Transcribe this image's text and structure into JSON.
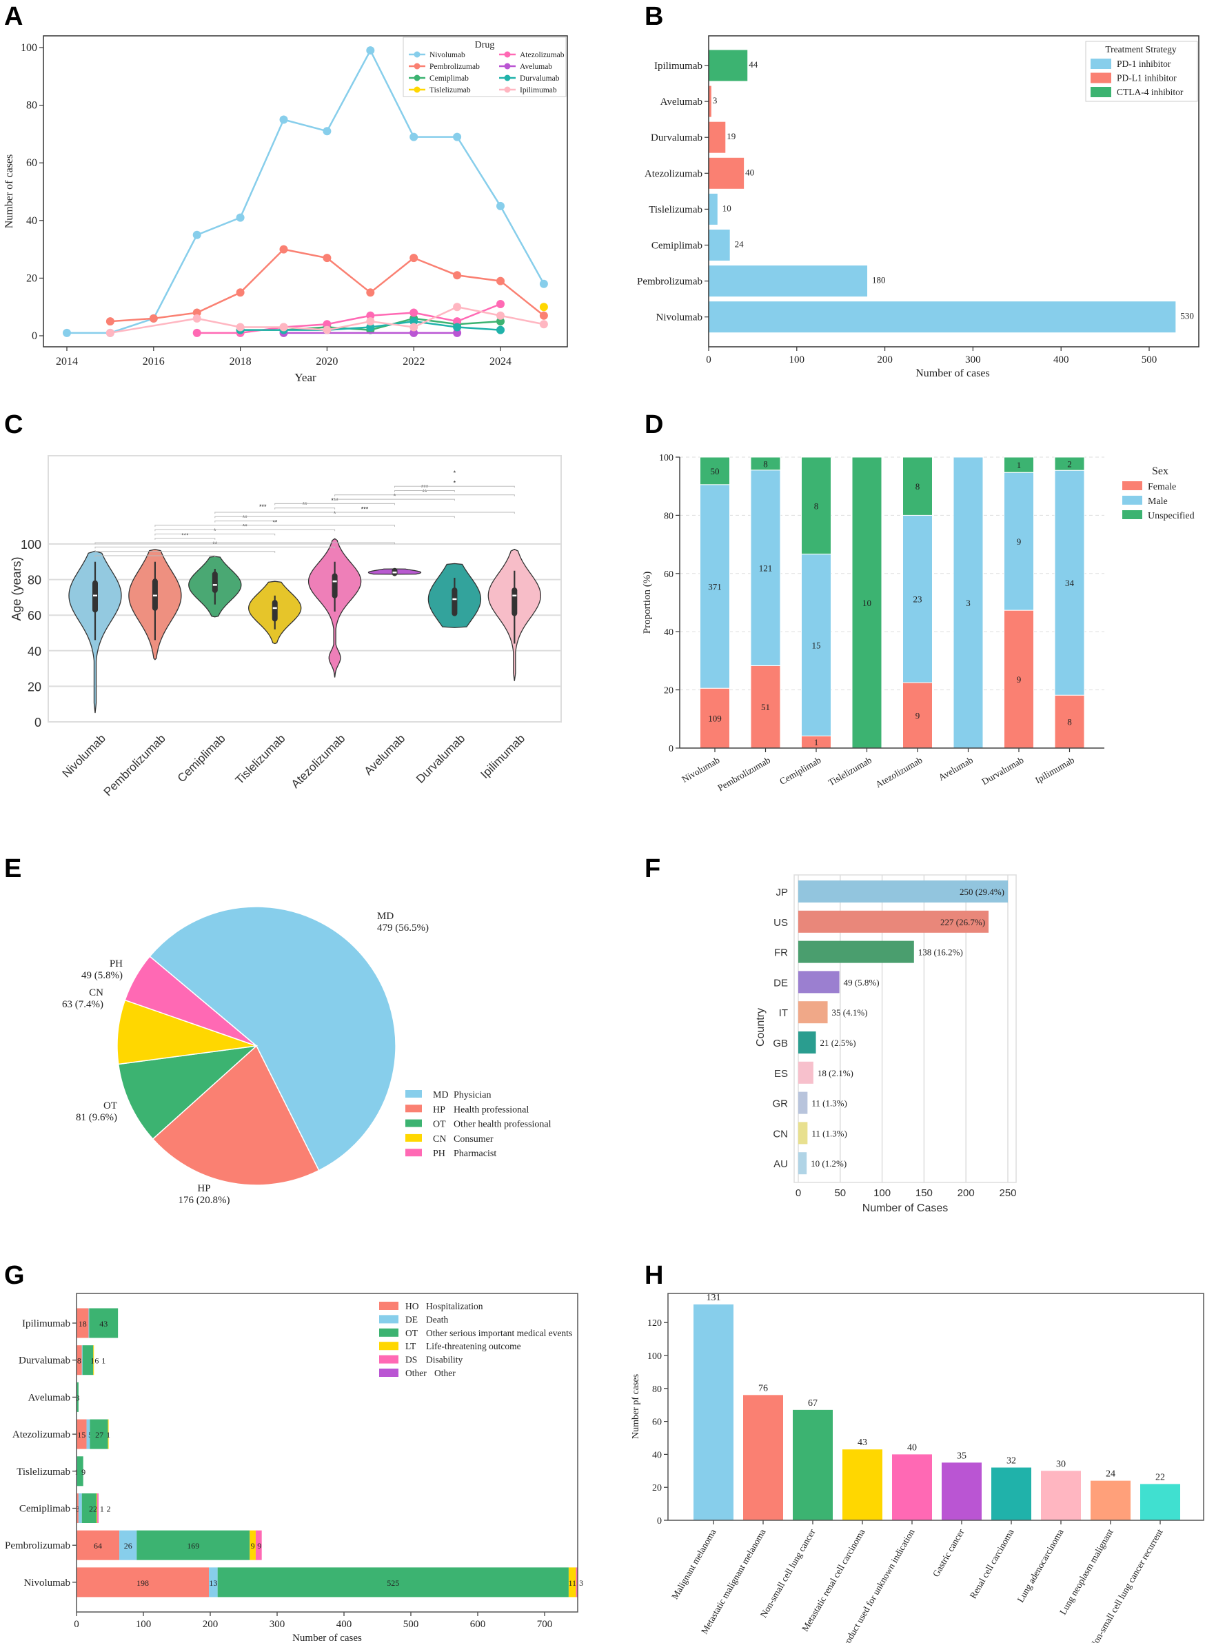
{
  "chart_data": [
    {
      "panel_label": "A",
      "type": "line",
      "xlabel": "Year",
      "ylabel": "Number of cases",
      "xlim": [
        2013.5,
        2025.6
      ],
      "ylim": [
        -4,
        104
      ],
      "x_ticks": [
        2014,
        2016,
        2018,
        2020,
        2022,
        2024
      ],
      "y_ticks": [
        0,
        20,
        40,
        60,
        80,
        100
      ],
      "legend_title": "Drug",
      "legend_position": "top-right",
      "series": [
        {
          "name": "Nivolumab",
          "color": "#87CEEB",
          "points": [
            [
              2014,
              1
            ],
            [
              2015,
              1
            ],
            [
              2016,
              6
            ],
            [
              2017,
              35
            ],
            [
              2018,
              41
            ],
            [
              2019,
              75
            ],
            [
              2020,
              71
            ],
            [
              2021,
              99
            ],
            [
              2022,
              69
            ],
            [
              2023,
              69
            ],
            [
              2024,
              45
            ],
            [
              2025,
              18
            ]
          ]
        },
        {
          "name": "Pembrolizumab",
          "color": "#FA8072",
          "points": [
            [
              2015,
              5
            ],
            [
              2016,
              6
            ],
            [
              2017,
              8
            ],
            [
              2018,
              15
            ],
            [
              2019,
              30
            ],
            [
              2020,
              27
            ],
            [
              2021,
              15
            ],
            [
              2022,
              27
            ],
            [
              2023,
              21
            ],
            [
              2024,
              19
            ],
            [
              2025,
              7
            ]
          ]
        },
        {
          "name": "Cemiplimab",
          "color": "#3CB371",
          "points": [
            [
              2018,
              2
            ],
            [
              2019,
              2
            ],
            [
              2020,
              3
            ],
            [
              2021,
              2
            ],
            [
              2022,
              6
            ],
            [
              2023,
              4
            ],
            [
              2024,
              5
            ]
          ]
        },
        {
          "name": "Tislelizumab",
          "color": "#FFD700",
          "points": [
            [
              2025,
              10
            ]
          ]
        },
        {
          "name": "Atezolizumab",
          "color": "#FF69B4",
          "points": [
            [
              2017,
              1
            ],
            [
              2018,
              1
            ],
            [
              2019,
              3
            ],
            [
              2020,
              4
            ],
            [
              2021,
              7
            ],
            [
              2022,
              8
            ],
            [
              2023,
              5
            ],
            [
              2024,
              11
            ]
          ]
        },
        {
          "name": "Avelumab",
          "color": "#BA55D3",
          "points": [
            [
              2019,
              1
            ],
            [
              2022,
              1
            ],
            [
              2023,
              1
            ]
          ]
        },
        {
          "name": "Durvalumab",
          "color": "#20B2AA",
          "points": [
            [
              2018,
              2
            ],
            [
              2019,
              2
            ],
            [
              2020,
              2
            ],
            [
              2021,
              3
            ],
            [
              2022,
              5
            ],
            [
              2023,
              3
            ],
            [
              2024,
              2
            ]
          ]
        },
        {
          "name": "Ipilimumab",
          "color": "#FFB6C1",
          "points": [
            [
              2015,
              1
            ],
            [
              2017,
              6
            ],
            [
              2018,
              3
            ],
            [
              2019,
              3
            ],
            [
              2020,
              2
            ],
            [
              2021,
              5
            ],
            [
              2022,
              3
            ],
            [
              2023,
              10
            ],
            [
              2024,
              7
            ],
            [
              2025,
              4
            ]
          ]
        }
      ]
    },
    {
      "panel_label": "B",
      "type": "bar",
      "orientation": "horizontal",
      "xlabel": "Number of cases",
      "x_ticks": [
        0,
        100,
        200,
        300,
        400,
        500
      ],
      "legend_title": "Treatment Strategy",
      "legend_position": "top-right",
      "legend": [
        {
          "name": "PD-1 inhibitor",
          "color": "#87CEEB"
        },
        {
          "name": "PD-L1 inhibitor",
          "color": "#FA8072"
        },
        {
          "name": "CTLA-4 inhibitor",
          "color": "#3CB371"
        }
      ],
      "categories": [
        "Ipilimumab",
        "Avelumab",
        "Durvalumab",
        "Atezolizumab",
        "Tislelizumab",
        "Cemiplimab",
        "Pembrolizumab",
        "Nivolumab"
      ],
      "values": [
        44,
        3,
        19,
        40,
        10,
        24,
        180,
        530
      ],
      "strategy": [
        2,
        1,
        1,
        1,
        0,
        0,
        0,
        0
      ],
      "value_labels": [
        "44",
        "3",
        "19",
        "40",
        "10",
        "24",
        "180",
        "530"
      ]
    },
    {
      "panel_label": "C",
      "type": "violin",
      "ylabel": "Age (years)",
      "y_ticks": [
        0,
        20,
        40,
        60,
        80,
        100
      ],
      "grid": true,
      "categories": [
        "Nivolumab",
        "Pembrolizumab",
        "Cemiplimab",
        "Tislelizumab",
        "Atezolizumab",
        "Avelumab",
        "Durvalumab",
        "Ipilimumab"
      ],
      "colors": [
        "#93C9E0",
        "#EE9080",
        "#4AA873",
        "#E6C52A",
        "#EE7FB8",
        "#B85AD0",
        "#33A39C",
        "#F7BDC8"
      ],
      "stats": [
        {
          "min": 5,
          "q1": 63,
          "median": 71,
          "q3": 78,
          "max": 96,
          "whisker_low": 46,
          "whisker_high": 90
        },
        {
          "min": 35,
          "q1": 64,
          "median": 71,
          "q3": 79,
          "max": 97,
          "whisker_low": 46,
          "whisker_high": 90
        },
        {
          "min": 59,
          "q1": 74,
          "median": 77,
          "q3": 83,
          "max": 93,
          "whisker_low": 66,
          "whisker_high": 86
        },
        {
          "min": 44,
          "q1": 58,
          "median": 64,
          "q3": 67,
          "max": 79,
          "whisker_low": 52,
          "whisker_high": 71
        },
        {
          "min": 25,
          "q1": 71,
          "median": 79,
          "q3": 82,
          "max": 103,
          "whisker_low": 62,
          "whisker_high": 90,
          "secondary_mode": 36
        },
        {
          "min": 83,
          "q1": 83.5,
          "median": 84,
          "q3": 85,
          "max": 86,
          "whisker_low": 83,
          "whisker_high": 86
        },
        {
          "min": 53,
          "q1": 61,
          "median": 69,
          "q3": 74,
          "max": 89,
          "whisker_low": 61,
          "whisker_high": 81
        },
        {
          "min": 23,
          "q1": 61,
          "median": 71,
          "q3": 74,
          "max": 97,
          "whisker_low": 44,
          "whisker_high": 85
        }
      ],
      "significance": [
        {
          "from": 0,
          "to": 2,
          "label": ""
        },
        {
          "from": 0,
          "to": 3,
          "label": ""
        },
        {
          "from": 0,
          "to": 4,
          "label": "**"
        },
        {
          "from": 0,
          "to": 5,
          "label": ""
        },
        {
          "from": 1,
          "to": 2,
          "label": "***"
        },
        {
          "from": 1,
          "to": 3,
          "label": "*"
        },
        {
          "from": 1,
          "to": 4,
          "label": "**"
        },
        {
          "from": 1,
          "to": 5,
          "label": "**"
        },
        {
          "from": 2,
          "to": 3,
          "label": "**"
        },
        {
          "from": 2,
          "to": 6,
          "label": "*"
        },
        {
          "from": 2,
          "to": 7,
          "label": "***"
        },
        {
          "from": 3,
          "to": 4,
          "label": "**"
        },
        {
          "from": 3,
          "to": 5,
          "label": "***"
        },
        {
          "from": 4,
          "to": 6,
          "label": "*"
        },
        {
          "from": 4,
          "to": 7,
          "label": "**"
        },
        {
          "from": 5,
          "to": 6,
          "label": "***"
        },
        {
          "from": 5,
          "to": 7,
          "label": "*"
        }
      ],
      "extra_labels": [
        "***",
        "*"
      ]
    },
    {
      "panel_label": "D",
      "type": "bar",
      "stacked": "percent",
      "ylabel": "Proportion (%)",
      "y_ticks": [
        0,
        20,
        40,
        60,
        80,
        100
      ],
      "grid": "dashed",
      "legend_title": "Sex",
      "legend_position": "right",
      "categories": [
        "Nivolumab",
        "Pembrolizumab",
        "Cemiplimab",
        "Tislelizumab",
        "Atezolizumab",
        "Avelumab",
        "Durvalumab",
        "Ipilimumab"
      ],
      "series": [
        {
          "name": "Female",
          "color": "#FA8072",
          "values": [
            109,
            51,
            1,
            0,
            9,
            0,
            9,
            8
          ]
        },
        {
          "name": "Male",
          "color": "#87CEEB",
          "values": [
            371,
            121,
            15,
            0,
            23,
            3,
            9,
            34
          ]
        },
        {
          "name": "Unspecified",
          "color": "#3CB371",
          "values": [
            50,
            8,
            8,
            10,
            8,
            0,
            1,
            2
          ]
        }
      ]
    },
    {
      "panel_label": "E",
      "type": "pie",
      "legend_position": "lower-right",
      "slices": [
        {
          "code": "MD",
          "name": "Physician",
          "value": 479,
          "label": "479 (56.5%)",
          "color": "#87CEEB"
        },
        {
          "code": "HP",
          "name": "Health professional",
          "value": 176,
          "label": "176 (20.8%)",
          "color": "#FA8072"
        },
        {
          "code": "OT",
          "name": "Other health professional",
          "value": 81,
          "label": "81 (9.6%)",
          "color": "#3CB371"
        },
        {
          "code": "CN",
          "name": "Consumer",
          "value": 63,
          "label": "63 (7.4%)",
          "color": "#FFD700"
        },
        {
          "code": "PH",
          "name": "Pharmacist",
          "value": 49,
          "label": "49 (5.8%)",
          "color": "#FF69B4"
        }
      ]
    },
    {
      "panel_label": "F",
      "type": "bar",
      "orientation": "horizontal",
      "xlabel": "Number of Cases",
      "ylabel": "Country",
      "x_ticks": [
        0,
        50,
        100,
        150,
        200,
        250
      ],
      "grid": true,
      "categories": [
        "JP",
        "US",
        "FR",
        "DE",
        "IT",
        "GB",
        "ES",
        "GR",
        "CN",
        "AU"
      ],
      "values": [
        250,
        227,
        138,
        49,
        35,
        21,
        18,
        11,
        11,
        10
      ],
      "value_labels": [
        "250 (29.4%)",
        "227 (26.7%)",
        "138 (16.2%)",
        "49 (5.8%)",
        "35 (4.1%)",
        "21 (2.5%)",
        "18 (2.1%)",
        "11 (1.3%)",
        "11 (1.3%)",
        "10 (1.2%)"
      ],
      "colors": [
        "#92C5DE",
        "#E9877A",
        "#4A9E6E",
        "#9B7FD0",
        "#F0A888",
        "#2A9D8F",
        "#F7C0CC",
        "#B8C4DC",
        "#E8E08F",
        "#B0D4E6"
      ]
    },
    {
      "panel_label": "G",
      "type": "bar",
      "orientation": "horizontal",
      "stacked": true,
      "xlabel": "Number of cases",
      "x_ticks": [
        0,
        100,
        200,
        300,
        400,
        500,
        600,
        700
      ],
      "legend_position": "top-right",
      "categories": [
        "Ipilimumab",
        "Durvalumab",
        "Avelumab",
        "Atezolizumab",
        "Tislelizumab",
        "Cemiplimab",
        "Pembrolizumab",
        "Nivolumab"
      ],
      "series": [
        {
          "code": "HO",
          "name": "Hospitalization",
          "color": "#FA8072",
          "values": [
            18,
            8,
            0,
            15,
            0,
            3,
            64,
            198
          ]
        },
        {
          "code": "DE",
          "name": "Death",
          "color": "#87CEEB",
          "values": [
            1,
            1,
            0,
            5,
            1,
            5,
            26,
            13
          ]
        },
        {
          "code": "OT",
          "name": "Other serious important medical events",
          "color": "#3CB371",
          "values": [
            43,
            16,
            3,
            27,
            9,
            22,
            169,
            525
          ]
        },
        {
          "code": "LT",
          "name": "Life-threatening outcome",
          "color": "#FFD700",
          "values": [
            0,
            1,
            0,
            1,
            0,
            1,
            9,
            11
          ]
        },
        {
          "code": "DS",
          "name": "Disability",
          "color": "#FF69B4",
          "values": [
            0,
            0,
            0,
            0,
            0,
            2,
            9,
            3
          ]
        },
        {
          "code": "Other",
          "name": "Other",
          "color": "#BA55D3",
          "values": [
            0,
            0,
            0,
            0,
            0,
            0,
            0,
            0
          ]
        }
      ]
    },
    {
      "panel_label": "H",
      "type": "bar",
      "ylabel": "Number pf cases",
      "y_ticks": [
        0,
        20,
        40,
        60,
        80,
        100,
        120
      ],
      "categories": [
        "Malignant melanoma",
        "Metastatic malignant melanoma",
        "Non-small cell lung cancer",
        "Metastatic renal cell carcinoma",
        "Product used for unknown indication",
        "Gastric cancer",
        "Renal cell carcinoma",
        "Lung adenocarcinoma",
        "Lung neoplasm malignant",
        "Non-small cell lung cancer recurrent"
      ],
      "values": [
        131,
        76,
        67,
        43,
        40,
        35,
        32,
        30,
        24,
        22
      ],
      "colors": [
        "#87CEEB",
        "#FA8072",
        "#3CB371",
        "#FFD700",
        "#FF69B4",
        "#BA55D3",
        "#20B2AA",
        "#FFB6C1",
        "#FFA07A",
        "#40E0D0"
      ]
    }
  ]
}
